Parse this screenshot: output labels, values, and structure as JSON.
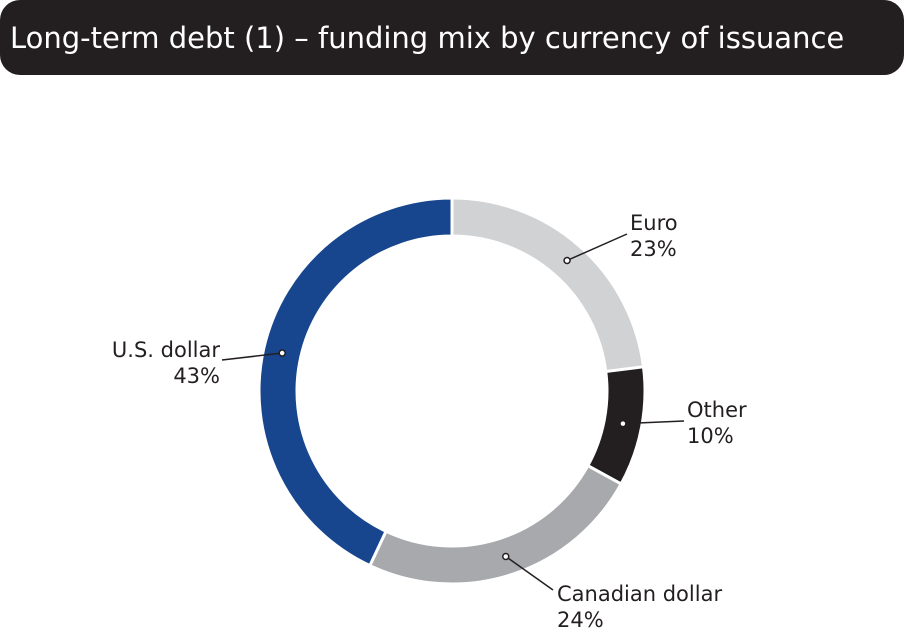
{
  "chart_data": {
    "type": "pie",
    "donut": true,
    "title": "Long-term debt (1) – funding mix by currency of issuance",
    "categories": [
      "Euro",
      "Other",
      "Canadian dollar",
      "U.S. dollar"
    ],
    "values": [
      23,
      10,
      24,
      43
    ],
    "value_labels": [
      "23%",
      "10%",
      "24%",
      "43%"
    ],
    "colors": [
      "#d1d2d4",
      "#231f20",
      "#a7a9ac",
      "#17468e"
    ]
  }
}
